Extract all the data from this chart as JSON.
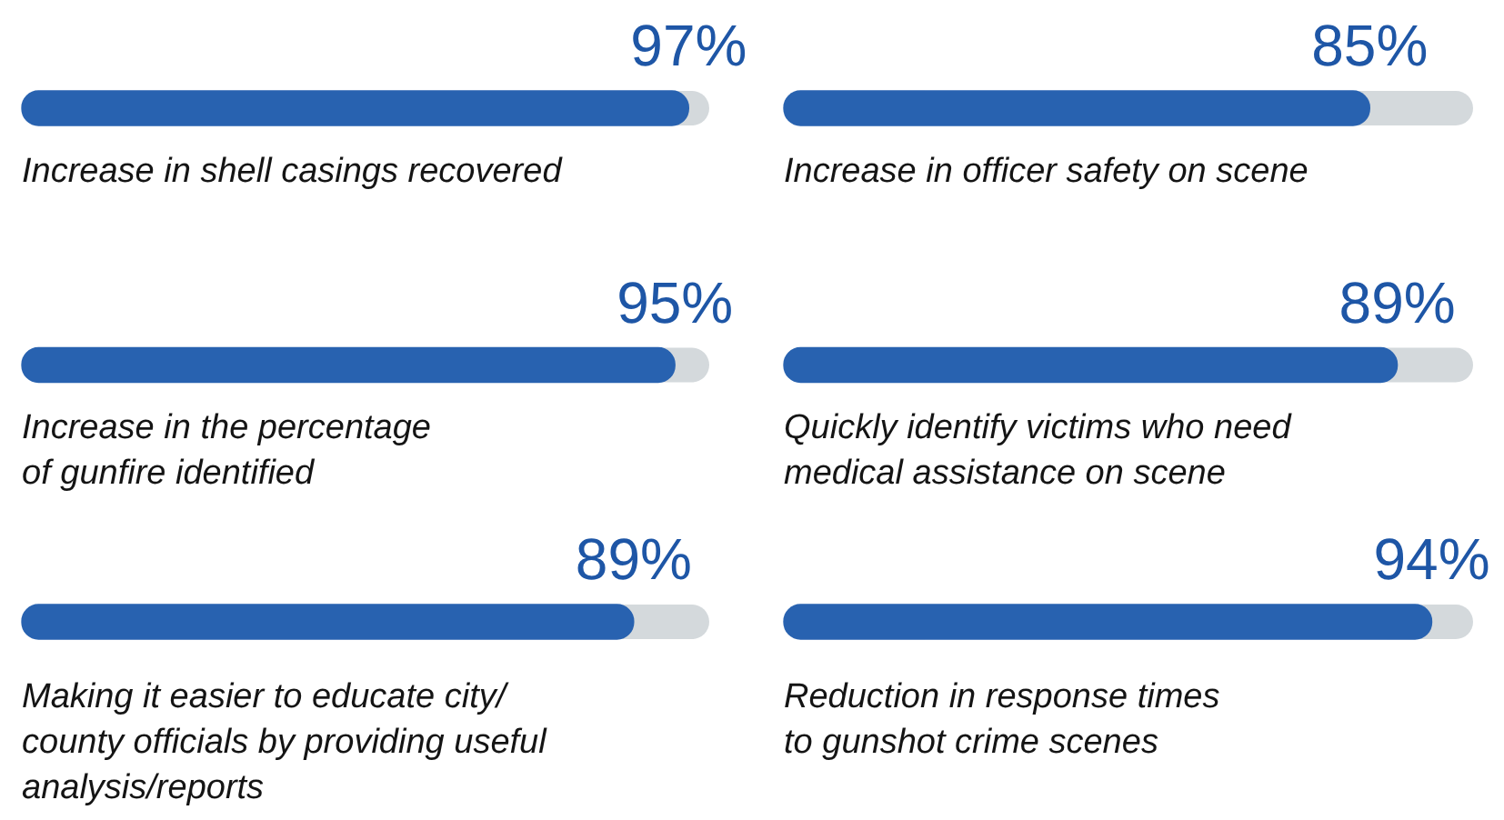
{
  "chart_data": [
    {
      "type": "bar",
      "orientation": "horizontal",
      "categories": [
        "Increase in shell casings recovered",
        "Increase in the percentage\nof gunfire identified",
        "Making it easier to educate city/\ncounty officials by providing useful\nanalysis/reports"
      ],
      "values": [
        97,
        95,
        89
      ],
      "value_labels": [
        "97%",
        "95%",
        "89%"
      ],
      "color": "#2862b0",
      "xlim": [
        0,
        100
      ],
      "tick_labels": "y"
    },
    {
      "type": "bar",
      "orientation": "horizontal",
      "categories": [
        "Increase in officer safety on scene",
        "Quickly identify victims who need\nmedical assistance on scene",
        "Reduction in response times\nto gunshot crime scenes"
      ],
      "values": [
        85,
        89,
        94
      ],
      "value_labels": [
        "85%",
        "89%",
        "94%"
      ],
      "color": "#2862b0",
      "xlim": [
        0,
        100
      ],
      "tick_labels": "y"
    }
  ]
}
